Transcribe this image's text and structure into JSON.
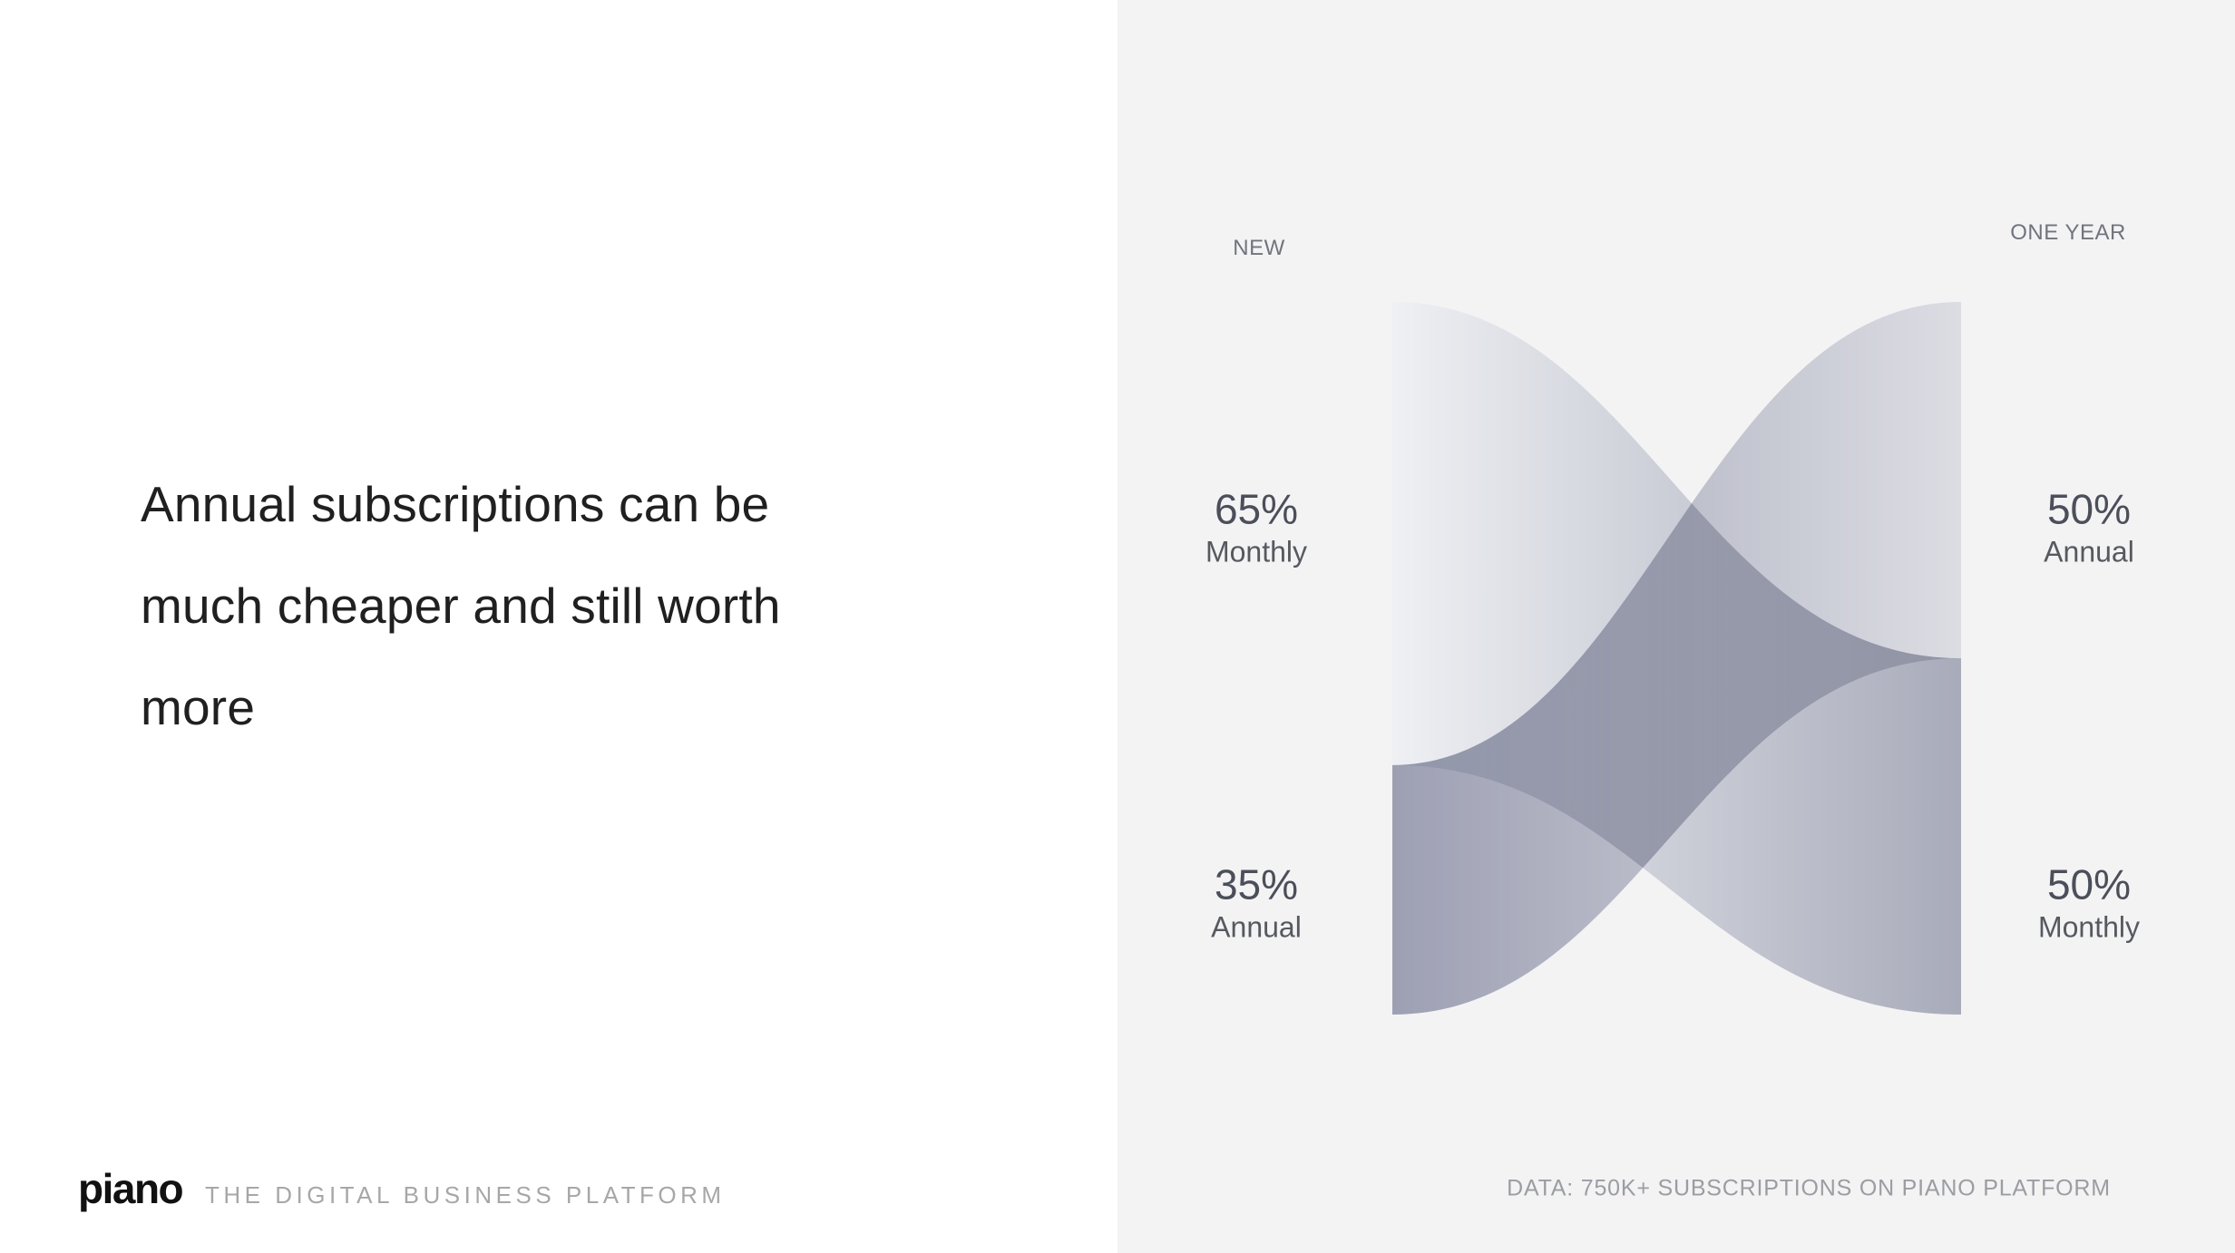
{
  "slide": {
    "headline_lines": [
      "Annual subscriptions can be",
      "much cheaper and still worth",
      "more"
    ],
    "brand": {
      "logo_text": "piano",
      "tagline": "THE DIGITAL BUSINESS PLATFORM"
    }
  },
  "chart_data": {
    "type": "sankey",
    "title": "",
    "left_column_label": "NEW",
    "right_column_label": "ONE YEAR",
    "left_nodes": [
      {
        "label": "Monthly",
        "value_pct": 65,
        "display": "65%"
      },
      {
        "label": "Annual",
        "value_pct": 35,
        "display": "35%"
      }
    ],
    "right_nodes": [
      {
        "label": "Annual",
        "value_pct": 50,
        "display": "50%"
      },
      {
        "label": "Monthly",
        "value_pct": 50,
        "display": "50%"
      }
    ],
    "flows": [
      {
        "from": "Monthly (new)",
        "to": "Monthly (one year)",
        "from_pct": 65,
        "to_pct": 50
      },
      {
        "from": "Annual (new)",
        "to": "Annual (one year)",
        "from_pct": 35,
        "to_pct": 50
      }
    ],
    "caption": "DATA: 750K+ SUBSCRIPTIONS ON PIANO PLATFORM",
    "legend_position": "none",
    "grid": false
  },
  "colors": {
    "left_bg": "#ffffff",
    "right_bg": "#f3f3f4",
    "headline": "#202020",
    "stat_number": "#4b4f5a",
    "stat_label": "#56595f",
    "column_label": "#70747e",
    "caption": "#9b9da2",
    "tagline": "#a7a7a7",
    "logo": "#111111",
    "ribbon_monthly_start": "#eef0f3",
    "ribbon_monthly_end": "#a8abba",
    "ribbon_annual_start": "#9da0b3",
    "ribbon_annual_end": "#dcdde3"
  }
}
